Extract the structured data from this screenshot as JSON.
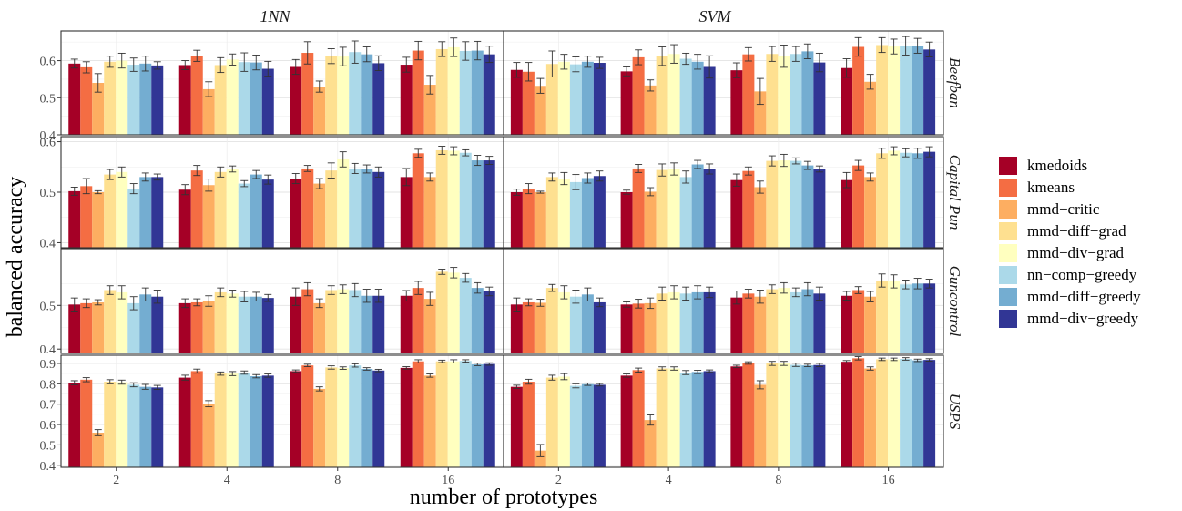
{
  "chart_data": {
    "type": "bar",
    "xlabel": "number of prototypes",
    "ylabel": "balanced accuracy",
    "categories": [
      "2",
      "4",
      "8",
      "16"
    ],
    "columns": [
      "1NN",
      "SVM"
    ],
    "legend_position": "right",
    "grid": true,
    "methods": [
      {
        "name": "kmedoids",
        "color": "#a50026"
      },
      {
        "name": "kmeans",
        "color": "#f46d43"
      },
      {
        "name": "mmd−critic",
        "color": "#fdae61"
      },
      {
        "name": "mmd−diff−grad",
        "color": "#fee090"
      },
      {
        "name": "mmd−div−grad",
        "color": "#ffffbf"
      },
      {
        "name": "nn−comp−greedy",
        "color": "#abd9e9"
      },
      {
        "name": "mmd−diff−greedy",
        "color": "#74add1"
      },
      {
        "name": "mmd−div−greedy",
        "color": "#313695"
      }
    ],
    "panels": [
      {
        "row": "Beefban",
        "ylim": [
          0.4,
          0.68
        ],
        "ticks": [
          0.4,
          0.5,
          0.6
        ],
        "tick_labels": [
          "0.4",
          "0.5",
          "0.6"
        ],
        "values": {
          "1NN": [
            [
              0.592,
              0.582,
              0.54,
              0.597,
              0.6,
              0.589,
              0.592,
              0.587
            ],
            [
              0.588,
              0.613,
              0.523,
              0.588,
              0.603,
              0.596,
              0.595,
              0.578
            ],
            [
              0.583,
              0.621,
              0.53,
              0.612,
              0.611,
              0.623,
              0.617,
              0.593
            ],
            [
              0.589,
              0.627,
              0.535,
              0.631,
              0.636,
              0.626,
              0.627,
              0.617
            ]
          ],
          "SVM": [
            [
              0.575,
              0.57,
              0.532,
              0.591,
              0.597,
              0.59,
              0.597,
              0.594
            ],
            [
              0.571,
              0.609,
              0.533,
              0.612,
              0.618,
              0.605,
              0.597,
              0.583
            ],
            [
              0.574,
              0.617,
              0.517,
              0.618,
              0.612,
              0.618,
              0.625,
              0.595
            ],
            [
              0.58,
              0.637,
              0.543,
              0.642,
              0.638,
              0.64,
              0.64,
              0.63
            ]
          ]
        },
        "errors": {
          "1NN": [
            [
              0.012,
              0.015,
              0.025,
              0.015,
              0.02,
              0.018,
              0.02,
              0.01
            ],
            [
              0.012,
              0.015,
              0.02,
              0.02,
              0.015,
              0.025,
              0.02,
              0.02
            ],
            [
              0.02,
              0.03,
              0.015,
              0.02,
              0.025,
              0.03,
              0.02,
              0.02
            ],
            [
              0.02,
              0.025,
              0.025,
              0.02,
              0.025,
              0.025,
              0.025,
              0.022
            ]
          ],
          "SVM": [
            [
              0.02,
              0.025,
              0.02,
              0.035,
              0.02,
              0.02,
              0.015,
              0.015
            ],
            [
              0.012,
              0.02,
              0.015,
              0.025,
              0.025,
              0.015,
              0.02,
              0.03
            ],
            [
              0.02,
              0.018,
              0.035,
              0.02,
              0.03,
              0.02,
              0.02,
              0.025
            ],
            [
              0.025,
              0.025,
              0.02,
              0.02,
              0.02,
              0.025,
              0.02,
              0.02
            ]
          ]
        }
      },
      {
        "row": "Capital Pun",
        "ylim": [
          0.39,
          0.61
        ],
        "ticks": [
          0.4,
          0.5,
          0.6
        ],
        "tick_labels": [
          "0.4",
          "0.5",
          "0.6"
        ],
        "values": {
          "1NN": [
            [
              0.502,
              0.512,
              0.5,
              0.535,
              0.54,
              0.507,
              0.53,
              0.53
            ],
            [
              0.505,
              0.543,
              0.514,
              0.54,
              0.546,
              0.517,
              0.535,
              0.525
            ],
            [
              0.527,
              0.547,
              0.517,
              0.543,
              0.565,
              0.547,
              0.546,
              0.54
            ],
            [
              0.53,
              0.577,
              0.53,
              0.583,
              0.582,
              0.578,
              0.563,
              0.563
            ]
          ],
          "SVM": [
            [
              0.5,
              0.507,
              0.5,
              0.53,
              0.527,
              0.52,
              0.528,
              0.532
            ],
            [
              0.5,
              0.547,
              0.501,
              0.544,
              0.546,
              0.53,
              0.555,
              0.546
            ],
            [
              0.524,
              0.542,
              0.51,
              0.562,
              0.563,
              0.562,
              0.553,
              0.546
            ],
            [
              0.524,
              0.553,
              0.53,
              0.577,
              0.582,
              0.578,
              0.577,
              0.58
            ]
          ]
        },
        "errors": {
          "1NN": [
            [
              0.008,
              0.015,
              0.003,
              0.01,
              0.01,
              0.01,
              0.008,
              0.006
            ],
            [
              0.01,
              0.01,
              0.012,
              0.01,
              0.006,
              0.006,
              0.008,
              0.009
            ],
            [
              0.01,
              0.006,
              0.01,
              0.015,
              0.015,
              0.01,
              0.008,
              0.01
            ],
            [
              0.017,
              0.008,
              0.008,
              0.008,
              0.008,
              0.006,
              0.01,
              0.008
            ]
          ],
          "SVM": [
            [
              0.006,
              0.01,
              0.002,
              0.008,
              0.012,
              0.015,
              0.01,
              0.01
            ],
            [
              0.004,
              0.008,
              0.008,
              0.012,
              0.012,
              0.012,
              0.008,
              0.01
            ],
            [
              0.012,
              0.008,
              0.012,
              0.01,
              0.012,
              0.006,
              0.008,
              0.006
            ],
            [
              0.015,
              0.01,
              0.008,
              0.01,
              0.008,
              0.008,
              0.01,
              0.01
            ]
          ]
        }
      },
      {
        "row": "Guncontrol",
        "ylim": [
          0.39,
          0.63
        ],
        "ticks": [
          0.4,
          0.5
        ],
        "tick_labels": [
          "0.4",
          "0.5"
        ],
        "values": {
          "1NN": [
            [
              0.502,
              0.505,
              0.507,
              0.535,
              0.53,
              0.505,
              0.525,
              0.52
            ],
            [
              0.505,
              0.507,
              0.51,
              0.53,
              0.527,
              0.52,
              0.52,
              0.517
            ],
            [
              0.52,
              0.537,
              0.505,
              0.535,
              0.537,
              0.535,
              0.522,
              0.522
            ],
            [
              0.522,
              0.54,
              0.515,
              0.577,
              0.575,
              0.563,
              0.54,
              0.532
            ]
          ],
          "SVM": [
            [
              0.502,
              0.507,
              0.506,
              0.54,
              0.53,
              0.52,
              0.525,
              0.507
            ],
            [
              0.502,
              0.504,
              0.505,
              0.527,
              0.53,
              0.527,
              0.53,
              0.53
            ],
            [
              0.518,
              0.527,
              0.52,
              0.537,
              0.54,
              0.53,
              0.537,
              0.527
            ],
            [
              0.522,
              0.535,
              0.52,
              0.557,
              0.555,
              0.548,
              0.55,
              0.55
            ]
          ]
        },
        "errors": {
          "1NN": [
            [
              0.015,
              0.01,
              0.006,
              0.01,
              0.015,
              0.015,
              0.015,
              0.015
            ],
            [
              0.01,
              0.008,
              0.012,
              0.01,
              0.008,
              0.012,
              0.01,
              0.008
            ],
            [
              0.02,
              0.015,
              0.01,
              0.01,
              0.01,
              0.015,
              0.015,
              0.015
            ],
            [
              0.012,
              0.015,
              0.015,
              0.006,
              0.012,
              0.01,
              0.012,
              0.01
            ]
          ],
          "SVM": [
            [
              0.015,
              0.008,
              0.008,
              0.008,
              0.015,
              0.015,
              0.015,
              0.01
            ],
            [
              0.006,
              0.01,
              0.012,
              0.015,
              0.015,
              0.015,
              0.015,
              0.012
            ],
            [
              0.015,
              0.01,
              0.015,
              0.01,
              0.012,
              0.01,
              0.015,
              0.015
            ],
            [
              0.01,
              0.008,
              0.012,
              0.015,
              0.015,
              0.01,
              0.012,
              0.01
            ]
          ]
        }
      },
      {
        "row": "USPS",
        "ylim": [
          0.39,
          0.94
        ],
        "ticks": [
          0.4,
          0.5,
          0.6,
          0.7,
          0.8,
          0.9
        ],
        "tick_labels": [
          "0.4",
          "0.5",
          "0.6",
          "0.7",
          "0.8",
          "0.9"
        ],
        "values": {
          "1NN": [
            [
              0.805,
              0.82,
              0.56,
              0.81,
              0.808,
              0.795,
              0.785,
              0.782
            ],
            [
              0.83,
              0.862,
              0.702,
              0.85,
              0.85,
              0.855,
              0.837,
              0.84
            ],
            [
              0.862,
              0.89,
              0.775,
              0.88,
              0.877,
              0.89,
              0.873,
              0.865
            ],
            [
              0.878,
              0.91,
              0.84,
              0.91,
              0.91,
              0.912,
              0.895,
              0.897
            ]
          ],
          "SVM": [
            [
              0.785,
              0.81,
              0.472,
              0.83,
              0.835,
              0.79,
              0.798,
              0.795
            ],
            [
              0.84,
              0.867,
              0.622,
              0.875,
              0.875,
              0.855,
              0.858,
              0.862
            ],
            [
              0.885,
              0.902,
              0.795,
              0.9,
              0.9,
              0.893,
              0.89,
              0.892
            ],
            [
              0.908,
              0.925,
              0.875,
              0.92,
              0.92,
              0.922,
              0.915,
              0.917
            ]
          ]
        },
        "errors": {
          "1NN": [
            [
              0.01,
              0.01,
              0.015,
              0.01,
              0.01,
              0.01,
              0.012,
              0.01
            ],
            [
              0.012,
              0.01,
              0.015,
              0.008,
              0.01,
              0.008,
              0.008,
              0.008
            ],
            [
              0.006,
              0.006,
              0.01,
              0.008,
              0.006,
              0.008,
              0.006,
              0.006
            ],
            [
              0.006,
              0.008,
              0.008,
              0.006,
              0.008,
              0.006,
              0.006,
              0.006
            ]
          ],
          "SVM": [
            [
              0.008,
              0.012,
              0.03,
              0.012,
              0.015,
              0.01,
              0.006,
              0.006
            ],
            [
              0.008,
              0.01,
              0.025,
              0.008,
              0.008,
              0.01,
              0.008,
              0.006
            ],
            [
              0.006,
              0.006,
              0.02,
              0.01,
              0.01,
              0.008,
              0.006,
              0.008
            ],
            [
              0.006,
              0.008,
              0.008,
              0.006,
              0.006,
              0.006,
              0.006,
              0.006
            ]
          ]
        }
      }
    ]
  }
}
